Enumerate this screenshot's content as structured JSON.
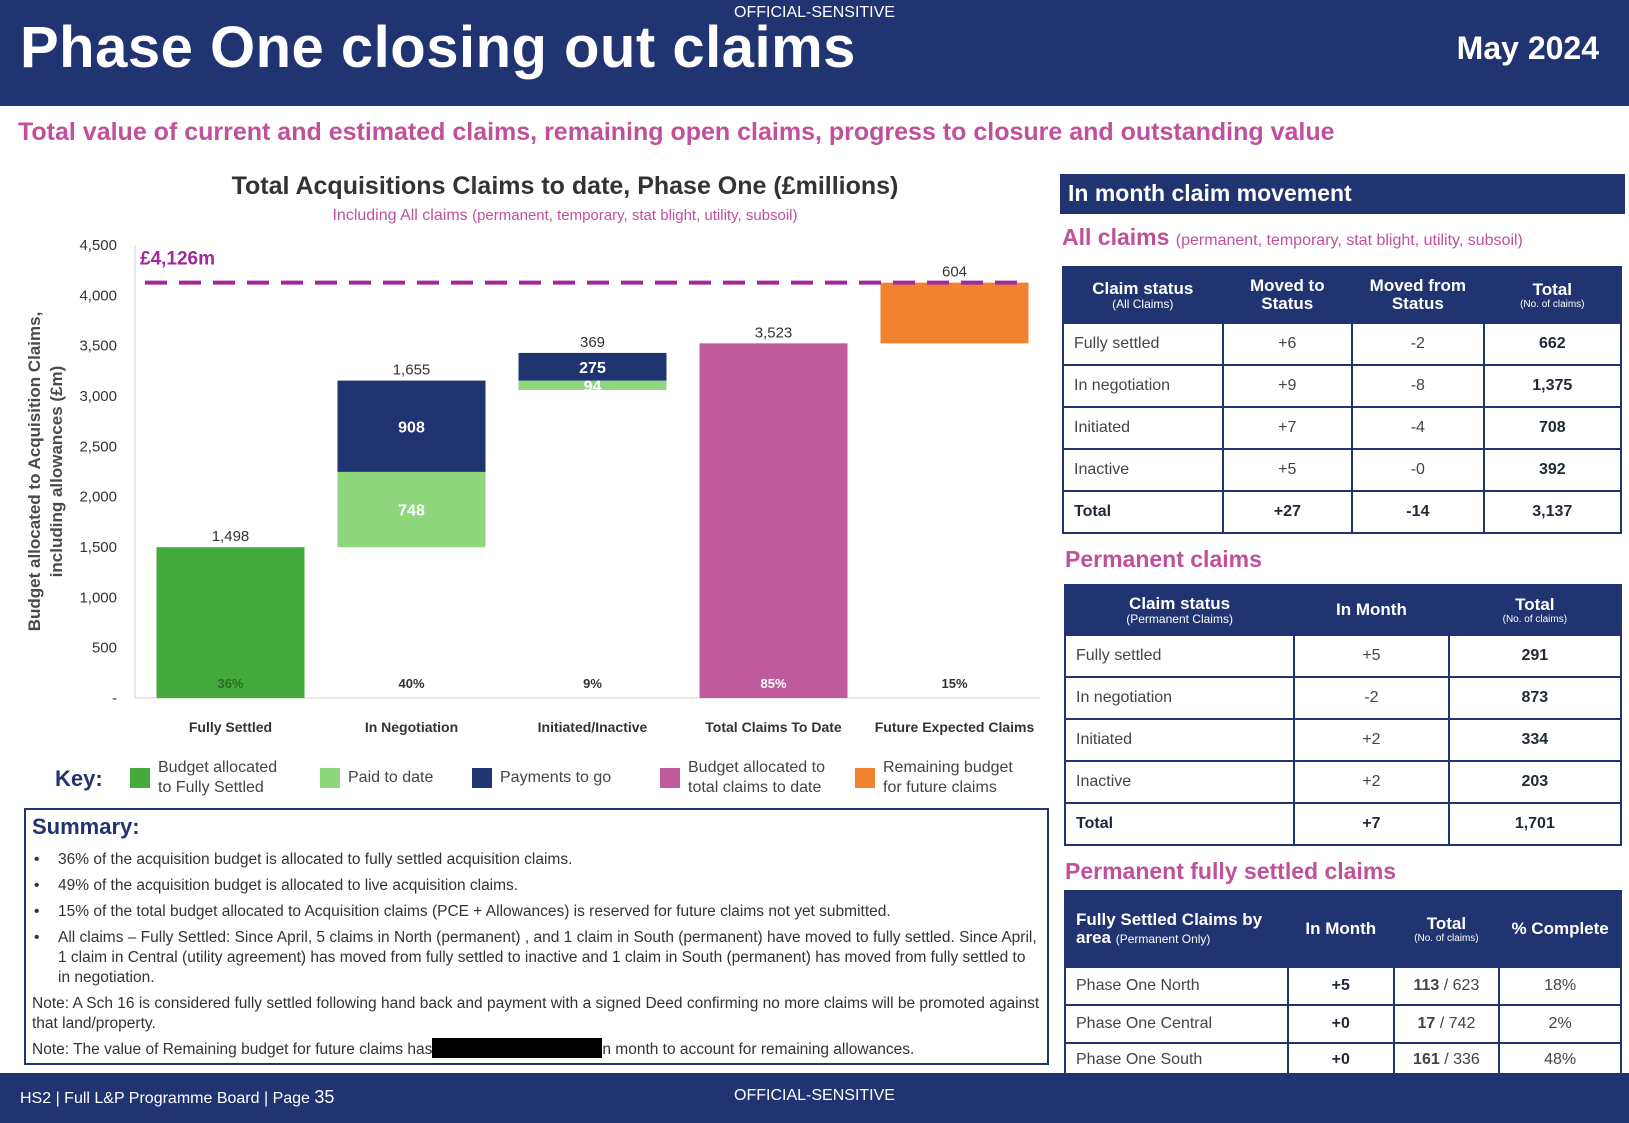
{
  "header": {
    "classification": "OFFICIAL-SENSITIVE",
    "title": "Phase One closing out claims",
    "date": "May 2024"
  },
  "subtitle": "Total value of current and estimated claims, remaining open claims, progress to closure and outstanding value",
  "chart_data": {
    "type": "bar",
    "title": "Total Acquisitions Claims to date, Phase One (£millions)",
    "subtitle_main": "Including All claims",
    "subtitle_detail": "(permanent, temporary, stat blight, utility, subsoil)",
    "ylabel_line1": "Budget allocated to Acquisition Claims,",
    "ylabel_line2": "including allowances (£m)",
    "ylim": [
      0,
      4500
    ],
    "yticks": [
      0,
      500,
      1000,
      1500,
      2000,
      2500,
      3000,
      3500,
      4000,
      4500
    ],
    "ytick_labels": [
      "-",
      "500",
      "1,000",
      "1,500",
      "2,000",
      "2,500",
      "3,000",
      "3,500",
      "4,000",
      "4,500"
    ],
    "budget_line": {
      "value": 4126,
      "label": "£4,126m",
      "color": "#a0289a"
    },
    "categories": [
      "Fully Settled",
      "In Negotiation",
      "Initiated/Inactive",
      "Total Claims To Date",
      "Future Expected Claims"
    ],
    "bars": [
      {
        "category": "Fully Settled",
        "segments": [
          {
            "from": 0,
            "to": 1498,
            "value": 1498,
            "color": "#44aa3b",
            "label": ""
          }
        ],
        "total_label": "1,498",
        "percent": "36%",
        "percent_color": "#2b6e25"
      },
      {
        "category": "In Negotiation",
        "segments": [
          {
            "from": 1498,
            "to": 2246,
            "value": 748,
            "color": "#8fd77d",
            "label": "748"
          },
          {
            "from": 2246,
            "to": 3153,
            "value": 908,
            "color": "#1f3470",
            "label": "908"
          }
        ],
        "total_label": "1,655",
        "percent": "40%",
        "percent_color": "#333333"
      },
      {
        "category": "Initiated/Inactive",
        "segments": [
          {
            "from": 3060,
            "to": 3153,
            "value": 94,
            "color": "#8fd77d",
            "label": "94"
          },
          {
            "from": 3153,
            "to": 3428,
            "value": 275,
            "color": "#1f3470",
            "label": "275"
          }
        ],
        "total_label": "369",
        "percent": "9%",
        "percent_color": "#333333"
      },
      {
        "category": "Total Claims To Date",
        "segments": [
          {
            "from": 0,
            "to": 3523,
            "value": 3523,
            "color": "#bf5a9c",
            "label": ""
          }
        ],
        "total_label": "3,523",
        "percent": "85%",
        "percent_color": "#ffffff"
      },
      {
        "category": "Future Expected Claims",
        "segments": [
          {
            "from": 3523,
            "to": 4126,
            "value": 604,
            "color": "#f08232",
            "label": ""
          }
        ],
        "total_label": "604",
        "percent": "15%",
        "percent_color": "#333333"
      }
    ]
  },
  "key": {
    "label": "Key:",
    "items": [
      {
        "line1": "Budget allocated",
        "line2": "to Fully Settled",
        "color": "#44aa3b"
      },
      {
        "line1": "Paid to date",
        "line2": "",
        "color": "#8fd77d"
      },
      {
        "line1": "Payments to go",
        "line2": "",
        "color": "#1f3470"
      },
      {
        "line1": "Budget allocated to",
        "line2": "total claims to date",
        "color": "#bf5a9c"
      },
      {
        "line1": "Remaining budget",
        "line2": "for future claims",
        "color": "#f08232"
      }
    ]
  },
  "summary": {
    "title": "Summary:",
    "bullets": [
      "36% of the acquisition budget is allocated to fully settled acquisition claims.",
      "49% of the acquisition budget is allocated to live acquisition claims.",
      "15% of the total budget allocated to Acquisition claims (PCE + Allowances) is reserved for future claims not yet submitted.",
      "All claims – Fully Settled: Since April, 5 claims in North (permanent) , and 1 claim in South (permanent) have moved to fully settled. Since April, 1 claim in Central (utility agreement) has moved from fully settled to inactive and 1 claim in South (permanent) has moved from fully settled to in negotiation."
    ],
    "note1": "Note: A Sch 16 is considered fully settled following hand back and payment with a signed Deed confirming no more claims will be promoted against that land/property.",
    "note2_before": "Note: The value of Remaining budget for future claims has",
    "note2_after": "n month to account for remaining allowances."
  },
  "in_month": {
    "heading": "In month claim movement",
    "all_claims": {
      "title": "All claims",
      "title_detail": "(permanent, temporary, stat blight, utility, subsoil)",
      "headers": [
        {
          "main": "Claim status",
          "sub": "(All Claims)"
        },
        {
          "main": "Moved to Status",
          "sub": ""
        },
        {
          "main": "Moved from Status",
          "sub": ""
        },
        {
          "main": "Total",
          "sub": "(No. of claims)"
        }
      ],
      "rows": [
        [
          "Fully settled",
          "+6",
          "-2",
          "662"
        ],
        [
          "In negotiation",
          "+9",
          "-8",
          "1,375"
        ],
        [
          "Initiated",
          "+7",
          "-4",
          "708"
        ],
        [
          "Inactive",
          "+5",
          "-0",
          "392"
        ]
      ],
      "total": [
        "Total",
        "+27",
        "-14",
        "3,137"
      ]
    },
    "permanent": {
      "title": "Permanent claims",
      "headers": [
        {
          "main": "Claim status",
          "sub": "(Permanent Claims)"
        },
        {
          "main": "In Month",
          "sub": ""
        },
        {
          "main": "Total",
          "sub": "(No. of claims)"
        }
      ],
      "rows": [
        [
          "Fully settled",
          "+5",
          "291"
        ],
        [
          "In negotiation",
          "-2",
          "873"
        ],
        [
          "Initiated",
          "+2",
          "334"
        ],
        [
          "Inactive",
          "+2",
          "203"
        ]
      ],
      "total": [
        "Total",
        "+7",
        "1,701"
      ]
    },
    "settled": {
      "title": "Permanent fully settled claims",
      "headers": [
        {
          "main": "Fully Settled Claims by area",
          "detail": "(Permanent Only)"
        },
        {
          "main": "In Month",
          "sub": ""
        },
        {
          "main": "Total",
          "sub": "(No. of claims)"
        },
        {
          "main": "% Complete",
          "sub": ""
        }
      ],
      "rows": [
        {
          "area": "Phase One North",
          "in_month": "+5",
          "settled": "113",
          "of": "/ 623",
          "pct": "18%"
        },
        {
          "area": "Phase One Central",
          "in_month": "+0",
          "settled": "17",
          "of": "/ 742",
          "pct": "2%"
        },
        {
          "area": "Phase One South",
          "in_month": "+0",
          "settled": "161",
          "of": "/ 336",
          "pct": "48%"
        }
      ]
    }
  },
  "footer": {
    "left": "HS2 | Full L&P Programme Board | Page",
    "page": "35",
    "center": "OFFICIAL-SENSITIVE"
  }
}
